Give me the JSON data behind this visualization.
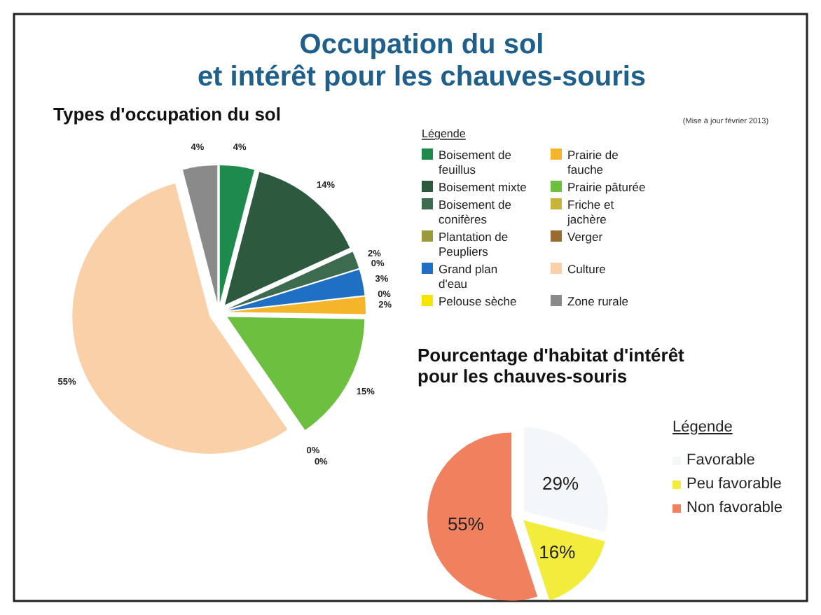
{
  "chart_data": [
    {
      "type": "pie",
      "title": "Occupation du sol\net intérêt pour les chauves-souris",
      "subtitle": "Types d'occupation du sol",
      "annotations": [
        "(Mise à jour février 2013)"
      ],
      "legend_title": "Légende",
      "legend": "right",
      "categories": [
        "Boisement de feuillus",
        "Boisement mixte",
        "Boisement de conifères",
        "Plantation de Peupliers",
        "Grand plan d'eau",
        "Pelouse sèche",
        "Prairie de fauche",
        "Prairie pâturée",
        "Friche et jachère",
        "Verger",
        "Culture",
        "Zone rurale"
      ],
      "values": [
        4,
        14,
        2,
        0,
        3,
        0,
        2,
        15,
        0,
        0,
        55,
        4
      ],
      "value_labels": [
        "4%",
        "14%",
        "2%",
        "0%",
        "3%",
        "0%",
        "2%",
        "15%",
        "0%",
        "0%",
        "55%",
        "4%"
      ],
      "colors": [
        "#1e8a4c",
        "#2d5a3f",
        "#3d6b50",
        "#9a9a3a",
        "#1f6fc4",
        "#f5e600",
        "#f5b52a",
        "#6cbf3f",
        "#c8b43a",
        "#9a6a30",
        "#f9d0a8",
        "#8a8a8a"
      ]
    },
    {
      "type": "pie",
      "title": "Pourcentage d'habitat d'intérêt\npour les chauves-souris",
      "legend_title": "Légende",
      "legend": "right",
      "categories": [
        "Favorable",
        "Peu favorable",
        "Non favorable"
      ],
      "values": [
        29,
        16,
        55
      ],
      "value_labels": [
        "29%",
        "16%",
        "55%"
      ],
      "colors": [
        "#f4f7fa",
        "#f2ec3c",
        "#f0805e"
      ]
    }
  ]
}
